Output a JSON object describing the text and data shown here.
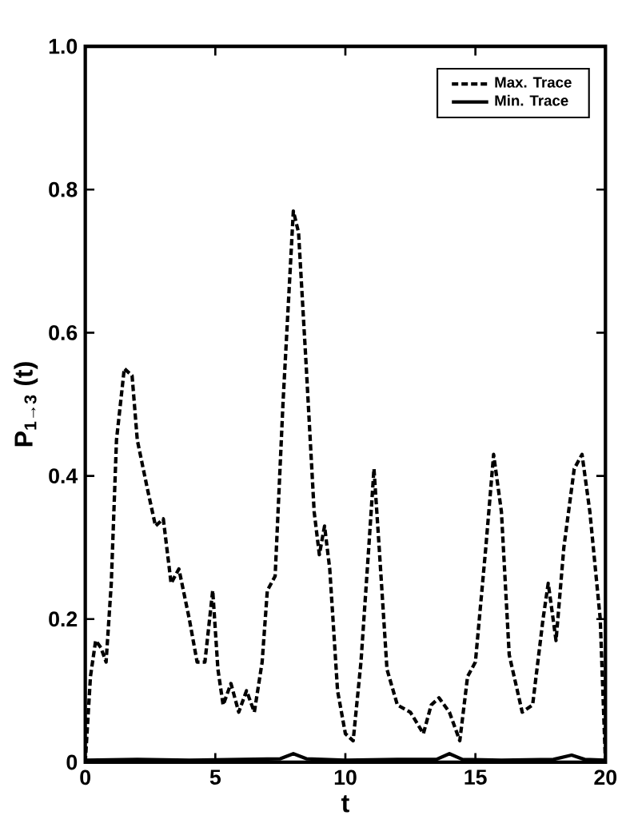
{
  "chart_data": {
    "type": "line",
    "xlabel": "t",
    "ylabel": "P$_{1→3}$ (t)",
    "xlim": [
      0,
      20
    ],
    "ylim": [
      0,
      1
    ],
    "xticks": [
      0,
      5,
      10,
      15,
      20
    ],
    "yticks": [
      0,
      0.2,
      0.4,
      0.6,
      0.8,
      {
        "value": 1,
        "label": "1.0"
      }
    ],
    "legend": "top right",
    "grid": false,
    "series": [
      {
        "name": "Max. Trace",
        "color": "#000000",
        "line_style": "dashed",
        "x": [
          0,
          0.2,
          0.4,
          0.6,
          0.8,
          1.0,
          1.2,
          1.5,
          1.8,
          2.0,
          2.4,
          2.7,
          3.0,
          3.3,
          3.6,
          4.0,
          4.3,
          4.6,
          4.9,
          5.1,
          5.3,
          5.6,
          5.9,
          6.2,
          6.5,
          6.8,
          7.0,
          7.3,
          7.6,
          8.0,
          8.2,
          8.5,
          8.8,
          9.0,
          9.2,
          9.4,
          9.7,
          10.0,
          10.3,
          10.6,
          10.9,
          11.1,
          11.3,
          11.6,
          12.0,
          12.5,
          13.0,
          13.3,
          13.6,
          14.0,
          14.4,
          14.7,
          15.0,
          15.4,
          15.7,
          16.0,
          16.3,
          16.8,
          17.2,
          17.6,
          17.8,
          18.1,
          18.4,
          18.8,
          19.1,
          19.4,
          19.8,
          20
        ],
        "values": [
          0,
          0.12,
          0.17,
          0.16,
          0.14,
          0.25,
          0.45,
          0.55,
          0.54,
          0.45,
          0.38,
          0.33,
          0.34,
          0.25,
          0.27,
          0.2,
          0.14,
          0.14,
          0.24,
          0.13,
          0.08,
          0.11,
          0.07,
          0.1,
          0.07,
          0.14,
          0.24,
          0.26,
          0.5,
          0.77,
          0.74,
          0.55,
          0.35,
          0.29,
          0.33,
          0.27,
          0.1,
          0.04,
          0.03,
          0.14,
          0.3,
          0.41,
          0.3,
          0.13,
          0.08,
          0.07,
          0.04,
          0.08,
          0.09,
          0.07,
          0.03,
          0.12,
          0.14,
          0.3,
          0.43,
          0.35,
          0.15,
          0.07,
          0.08,
          0.2,
          0.25,
          0.17,
          0.3,
          0.41,
          0.43,
          0.35,
          0.2,
          0
        ]
      },
      {
        "name": "Min. Trace",
        "color": "#000000",
        "line_style": "solid",
        "x": [
          0,
          2,
          4,
          6,
          7.5,
          8,
          8.5,
          10,
          12,
          13.5,
          14,
          14.5,
          16,
          18,
          18.7,
          19.2,
          20
        ],
        "values": [
          0.003,
          0.004,
          0.003,
          0.004,
          0.005,
          0.012,
          0.005,
          0.003,
          0.004,
          0.004,
          0.012,
          0.004,
          0.003,
          0.004,
          0.01,
          0.004,
          0.003
        ]
      }
    ]
  }
}
